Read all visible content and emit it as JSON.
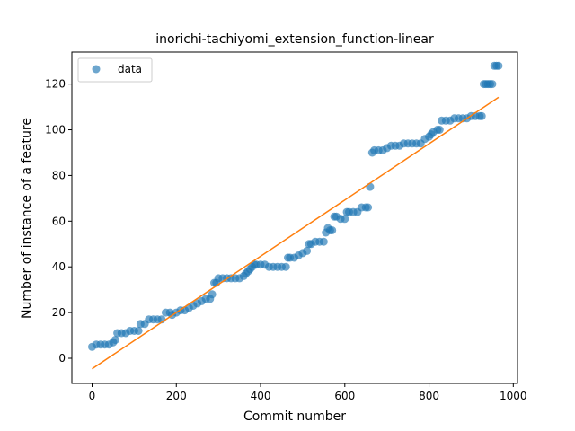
{
  "chart_data": {
    "type": "scatter",
    "title": "inorichi-tachiyomi_extension_function-linear",
    "xlabel": "Commit number",
    "ylabel": "Number of instance of a feature",
    "xlim": [
      -48,
      1010
    ],
    "ylim": [
      -11,
      134
    ],
    "xticks": [
      0,
      200,
      400,
      600,
      800,
      1000
    ],
    "yticks": [
      0,
      20,
      40,
      60,
      80,
      100,
      120
    ],
    "legend": {
      "placement": "top-left",
      "entries": [
        "data"
      ]
    },
    "colors": {
      "data": "#1f77b4",
      "fit": "#ff7f0e"
    },
    "series": [
      {
        "name": "data",
        "kind": "scatter",
        "points": [
          [
            0,
            5
          ],
          [
            10,
            6
          ],
          [
            20,
            6
          ],
          [
            30,
            6
          ],
          [
            40,
            6
          ],
          [
            50,
            7
          ],
          [
            55,
            8
          ],
          [
            60,
            11
          ],
          [
            70,
            11
          ],
          [
            80,
            11
          ],
          [
            90,
            12
          ],
          [
            100,
            12
          ],
          [
            110,
            12
          ],
          [
            115,
            15
          ],
          [
            125,
            15
          ],
          [
            135,
            17
          ],
          [
            145,
            17
          ],
          [
            155,
            17
          ],
          [
            165,
            17
          ],
          [
            175,
            20
          ],
          [
            185,
            20
          ],
          [
            190,
            19
          ],
          [
            200,
            20
          ],
          [
            210,
            21
          ],
          [
            220,
            21
          ],
          [
            230,
            22
          ],
          [
            240,
            23
          ],
          [
            250,
            24
          ],
          [
            260,
            25
          ],
          [
            270,
            26
          ],
          [
            280,
            26
          ],
          [
            285,
            28
          ],
          [
            290,
            33
          ],
          [
            295,
            33
          ],
          [
            300,
            35
          ],
          [
            310,
            35
          ],
          [
            320,
            35
          ],
          [
            330,
            35
          ],
          [
            340,
            35
          ],
          [
            350,
            35
          ],
          [
            360,
            36
          ],
          [
            365,
            37
          ],
          [
            370,
            38
          ],
          [
            375,
            39
          ],
          [
            380,
            40
          ],
          [
            385,
            41
          ],
          [
            390,
            41
          ],
          [
            400,
            41
          ],
          [
            410,
            41
          ],
          [
            420,
            40
          ],
          [
            430,
            40
          ],
          [
            440,
            40
          ],
          [
            450,
            40
          ],
          [
            460,
            40
          ],
          [
            465,
            44
          ],
          [
            470,
            44
          ],
          [
            480,
            44
          ],
          [
            490,
            45
          ],
          [
            500,
            46
          ],
          [
            510,
            47
          ],
          [
            515,
            50
          ],
          [
            520,
            50
          ],
          [
            530,
            51
          ],
          [
            540,
            51
          ],
          [
            550,
            51
          ],
          [
            555,
            55
          ],
          [
            560,
            57
          ],
          [
            565,
            56
          ],
          [
            570,
            56
          ],
          [
            575,
            62
          ],
          [
            580,
            62
          ],
          [
            590,
            61
          ],
          [
            600,
            61
          ],
          [
            605,
            64
          ],
          [
            610,
            64
          ],
          [
            620,
            64
          ],
          [
            630,
            64
          ],
          [
            640,
            66
          ],
          [
            650,
            66
          ],
          [
            655,
            66
          ],
          [
            660,
            75
          ],
          [
            665,
            90
          ],
          [
            670,
            91
          ],
          [
            680,
            91
          ],
          [
            690,
            91
          ],
          [
            700,
            92
          ],
          [
            710,
            93
          ],
          [
            720,
            93
          ],
          [
            730,
            93
          ],
          [
            740,
            94
          ],
          [
            750,
            94
          ],
          [
            760,
            94
          ],
          [
            770,
            94
          ],
          [
            780,
            94
          ],
          [
            790,
            96
          ],
          [
            800,
            97
          ],
          [
            805,
            98
          ],
          [
            810,
            99
          ],
          [
            820,
            100
          ],
          [
            825,
            100
          ],
          [
            830,
            104
          ],
          [
            840,
            104
          ],
          [
            850,
            104
          ],
          [
            860,
            105
          ],
          [
            870,
            105
          ],
          [
            880,
            105
          ],
          [
            890,
            105
          ],
          [
            900,
            106
          ],
          [
            910,
            106
          ],
          [
            920,
            106
          ],
          [
            925,
            106
          ],
          [
            930,
            120
          ],
          [
            935,
            120
          ],
          [
            940,
            120
          ],
          [
            945,
            120
          ],
          [
            950,
            120
          ],
          [
            955,
            128
          ],
          [
            960,
            128
          ],
          [
            965,
            128
          ]
        ]
      },
      {
        "name": "",
        "kind": "line",
        "points": [
          [
            0,
            -4.6
          ],
          [
            965,
            114.2
          ]
        ]
      }
    ]
  }
}
